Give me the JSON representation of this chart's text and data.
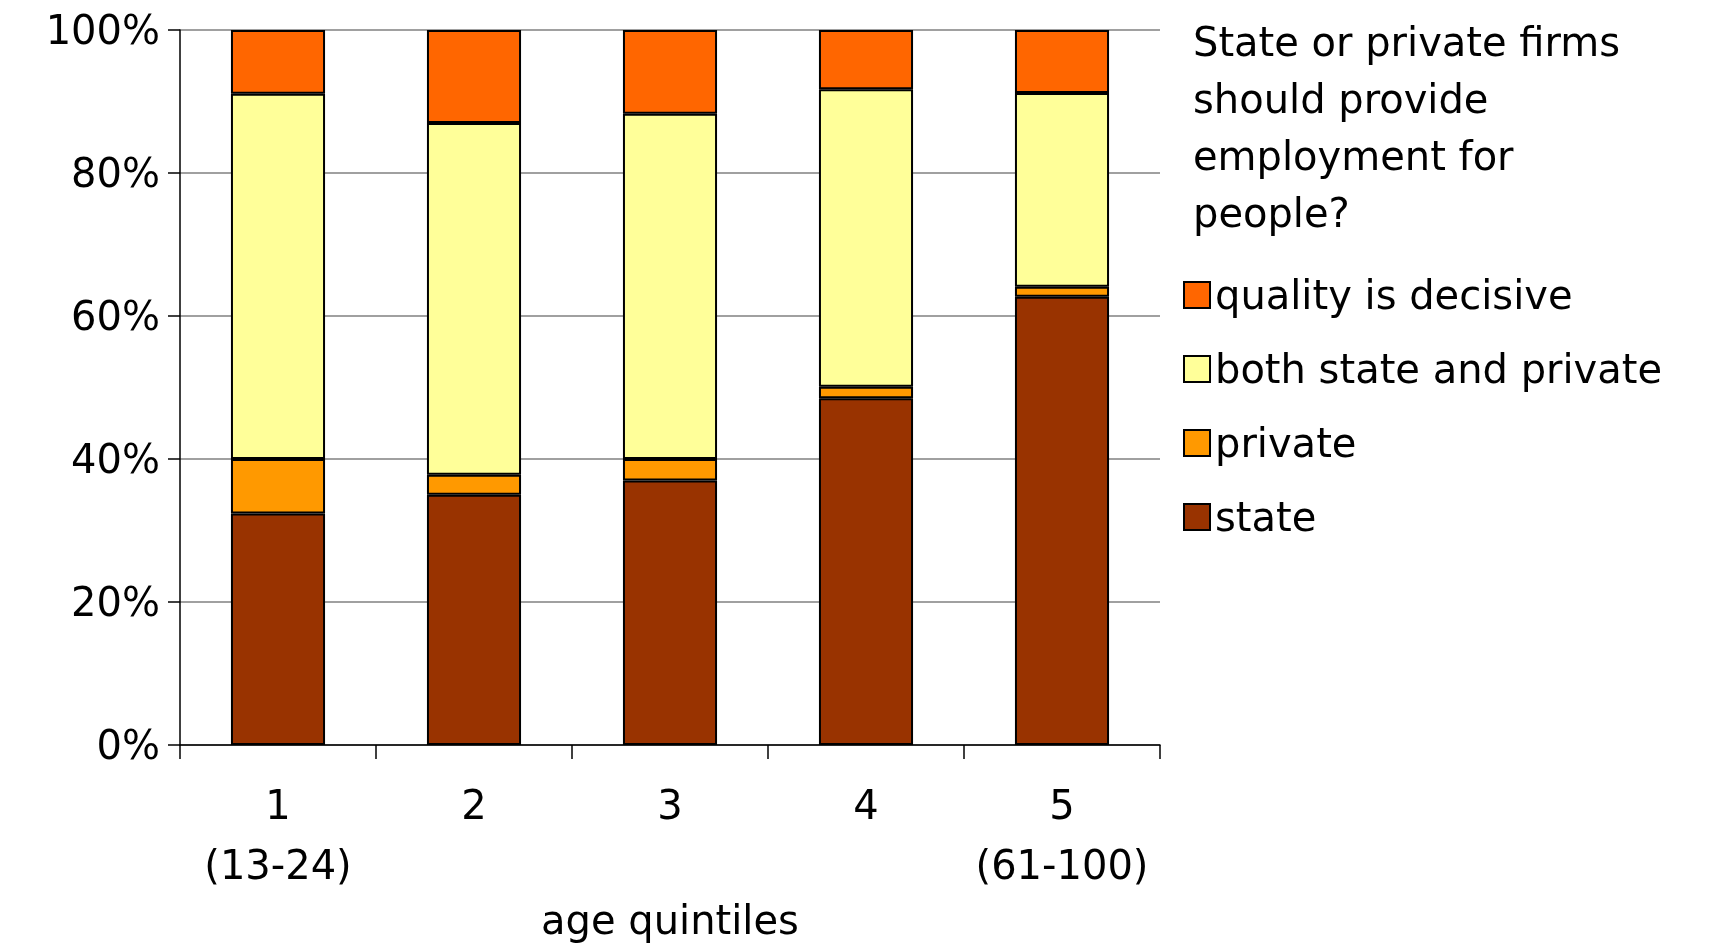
{
  "chart_data": {
    "type": "bar",
    "stacked": true,
    "xlabel": "age quintiles",
    "legend_title": "State or private firms\nshould provide\nemployment for\npeople?",
    "categories": [
      "1\n(13-24)",
      "2",
      "3",
      "4",
      "5\n(61-100)"
    ],
    "series": [
      {
        "name": "state",
        "color": "#993300",
        "values": [
          32.4,
          35.0,
          37.0,
          48.5,
          62.7
        ]
      },
      {
        "name": "private",
        "color": "#ff9900",
        "values": [
          7.6,
          2.8,
          3.0,
          1.6,
          1.4
        ]
      },
      {
        "name": "both state and private",
        "color": "#ffff99",
        "values": [
          51.1,
          49.2,
          48.3,
          41.6,
          27.1
        ]
      },
      {
        "name": "quality is decisive",
        "color": "#ff6600",
        "values": [
          8.9,
          13.0,
          11.7,
          8.3,
          8.8
        ]
      }
    ],
    "ylim": [
      0,
      100
    ],
    "yticks": [
      {
        "value": 0,
        "label": "0%"
      },
      {
        "value": 20,
        "label": "20%"
      },
      {
        "value": 40,
        "label": "40%"
      },
      {
        "value": 60,
        "label": "60%"
      },
      {
        "value": 80,
        "label": "80%"
      },
      {
        "value": 100,
        "label": "100%"
      }
    ],
    "grid": "y",
    "legend": "right"
  }
}
